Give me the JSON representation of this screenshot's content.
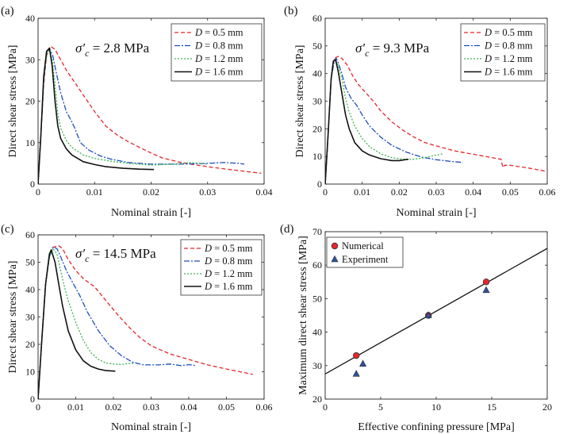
{
  "chart_data": [
    {
      "id": "a",
      "type": "line",
      "panel_label": "(a)",
      "annotation": {
        "sigma": "σ′",
        "sub": "c",
        "rest": " = 2.8 MPa"
      },
      "xlabel": "Nominal strain [-]",
      "ylabel": "Direct shear stress [MPa]",
      "xlim": [
        0,
        0.04
      ],
      "ylim": [
        0,
        40
      ],
      "xticks": [
        0,
        0.01,
        0.02,
        0.03,
        0.04
      ],
      "xtick_labels": [
        "0",
        "0.01",
        "0.02",
        "0.03",
        "0.04"
      ],
      "yticks": [
        0,
        10,
        20,
        30,
        40
      ],
      "ytick_labels": [
        "0",
        "10",
        "20",
        "30",
        "40"
      ],
      "legend": "top-right",
      "series": [
        {
          "name": "D = 0.5 mm",
          "color": "#e8262b",
          "dash": "5,3",
          "x": [
            0,
            0.0005,
            0.001,
            0.0015,
            0.0022,
            0.003,
            0.004,
            0.005,
            0.0065,
            0.008,
            0.01,
            0.012,
            0.014,
            0.016,
            0.018,
            0.02,
            0.022,
            0.025,
            0.028,
            0.031,
            0.034,
            0.037,
            0.0395
          ],
          "y": [
            0,
            12,
            24,
            31,
            33.2,
            32.5,
            30,
            27.5,
            24.5,
            21.5,
            17.5,
            14,
            11.8,
            10.2,
            8.8,
            7.5,
            6.3,
            5.3,
            4.6,
            4.0,
            3.5,
            3.0,
            2.6
          ]
        },
        {
          "name": "D = 0.8 mm",
          "color": "#1f4fbf",
          "dash": "7,2,2,2",
          "x": [
            0,
            0.0005,
            0.001,
            0.0015,
            0.002,
            0.0026,
            0.0032,
            0.004,
            0.005,
            0.0058,
            0.0065,
            0.0075,
            0.009,
            0.011,
            0.013,
            0.016,
            0.02,
            0.025,
            0.03,
            0.033,
            0.0355,
            0.0365
          ],
          "y": [
            0,
            12,
            25,
            31.5,
            32.8,
            31,
            27,
            22,
            17.5,
            15.5,
            13.5,
            10,
            8.2,
            6.8,
            6,
            5.2,
            4.8,
            4.8,
            5,
            5.2,
            5,
            4.8
          ]
        },
        {
          "name": "D = 1.2 mm",
          "color": "#3ab44a",
          "dash": "2,2",
          "x": [
            0,
            0.0005,
            0.001,
            0.0015,
            0.002,
            0.0025,
            0.003,
            0.0035,
            0.004,
            0.005,
            0.006,
            0.008,
            0.01,
            0.013,
            0.016,
            0.02,
            0.024,
            0.027,
            0.0285,
            0.03
          ],
          "y": [
            0,
            12,
            25,
            31,
            32.5,
            30,
            24,
            17,
            13.5,
            10.5,
            8.8,
            7,
            6.2,
            5.5,
            5,
            4.6,
            4.8,
            5.2,
            5,
            4.8
          ]
        },
        {
          "name": "D = 1.6 mm",
          "color": "#111111",
          "dash": "",
          "x": [
            0,
            0.0005,
            0.001,
            0.0015,
            0.002,
            0.0025,
            0.003,
            0.0035,
            0.004,
            0.005,
            0.006,
            0.008,
            0.01,
            0.012,
            0.015,
            0.018,
            0.0205
          ],
          "y": [
            0,
            12,
            26,
            32,
            32.8,
            28.5,
            20,
            14,
            11,
            8.5,
            7,
            5.4,
            4.7,
            4.2,
            3.8,
            3.6,
            3.5
          ]
        }
      ]
    },
    {
      "id": "b",
      "type": "line",
      "panel_label": "(b)",
      "annotation": {
        "sigma": "σ′",
        "sub": "c",
        "rest": " = 9.3 MPa"
      },
      "xlabel": "Nominal strain [-]",
      "ylabel": "Direct shear stress [MPa]",
      "xlim": [
        0,
        0.06
      ],
      "ylim": [
        0,
        60
      ],
      "xticks": [
        0,
        0.01,
        0.02,
        0.03,
        0.04,
        0.05,
        0.06
      ],
      "xtick_labels": [
        "0",
        "0.01",
        "0.02",
        "0.03",
        "0.04",
        "0.05",
        "0.06"
      ],
      "yticks": [
        0,
        10,
        20,
        30,
        40,
        50,
        60
      ],
      "ytick_labels": [
        "0",
        "10",
        "20",
        "30",
        "40",
        "50",
        "60"
      ],
      "legend": "top-right",
      "series": [
        {
          "name": "D = 0.5 mm",
          "color": "#e8262b",
          "dash": "5,3",
          "x": [
            0,
            0.0008,
            0.0016,
            0.0025,
            0.0035,
            0.0045,
            0.006,
            0.0075,
            0.009,
            0.011,
            0.013,
            0.015,
            0.018,
            0.021,
            0.024,
            0.027,
            0.03,
            0.035,
            0.04,
            0.045,
            0.0475,
            0.048,
            0.0485,
            0.05,
            0.055,
            0.0598
          ],
          "y": [
            0,
            18,
            38,
            45.5,
            46.2,
            45.5,
            43,
            39,
            36,
            33,
            30,
            26.5,
            22.5,
            19.5,
            17,
            15,
            13.8,
            12,
            10.8,
            9.6,
            9,
            6,
            6.8,
            6.8,
            5.8,
            4.6
          ]
        },
        {
          "name": "D = 0.8 mm",
          "color": "#1f4fbf",
          "dash": "7,2,2,2",
          "x": [
            0,
            0.0008,
            0.0016,
            0.0025,
            0.003,
            0.0035,
            0.0045,
            0.0055,
            0.007,
            0.0085,
            0.01,
            0.012,
            0.015,
            0.018,
            0.022,
            0.026,
            0.03,
            0.034,
            0.0372
          ],
          "y": [
            0,
            18,
            38,
            45,
            45.5,
            44,
            40,
            35,
            31,
            28.5,
            25,
            21,
            17,
            14,
            11.5,
            9.8,
            8.8,
            8.2,
            7.8
          ]
        },
        {
          "name": "D = 1.2 mm",
          "color": "#3ab44a",
          "dash": "2,2",
          "x": [
            0,
            0.0008,
            0.0016,
            0.0022,
            0.0028,
            0.0035,
            0.0045,
            0.0055,
            0.0065,
            0.008,
            0.01,
            0.012,
            0.015,
            0.018,
            0.021,
            0.024,
            0.027,
            0.03,
            0.032
          ],
          "y": [
            0,
            18,
            38,
            44.5,
            45,
            43,
            38,
            31,
            26,
            21,
            16.5,
            13.5,
            11,
            9.6,
            9,
            9,
            9.6,
            10.5,
            11
          ]
        },
        {
          "name": "D = 1.6 mm",
          "color": "#111111",
          "dash": "",
          "x": [
            0,
            0.0008,
            0.0016,
            0.0022,
            0.0028,
            0.0035,
            0.0045,
            0.0055,
            0.0065,
            0.008,
            0.01,
            0.012,
            0.015,
            0.018,
            0.02,
            0.0225
          ],
          "y": [
            0,
            18,
            38,
            44.5,
            45,
            41,
            33,
            25,
            20,
            15,
            12,
            10.5,
            9.2,
            8.5,
            8.5,
            9
          ]
        }
      ]
    },
    {
      "id": "c",
      "type": "line",
      "panel_label": "(c)",
      "annotation": {
        "sigma": "σ′",
        "sub": "c",
        "rest": " = 14.5 MPa"
      },
      "xlabel": "Nominal strain [-]",
      "ylabel": "Direct shear stress [MPa]",
      "xlim": [
        0,
        0.06
      ],
      "ylim": [
        0,
        60
      ],
      "xticks": [
        0,
        0.01,
        0.02,
        0.03,
        0.04,
        0.05,
        0.06
      ],
      "xtick_labels": [
        "0",
        "0.01",
        "0.02",
        "0.03",
        "0.04",
        "0.05",
        "0.06"
      ],
      "yticks": [
        0,
        10,
        20,
        30,
        40,
        50,
        60
      ],
      "ytick_labels": [
        "0",
        "10",
        "20",
        "30",
        "40",
        "50",
        "60"
      ],
      "legend": "top-right",
      "series": [
        {
          "name": "D = 0.5 mm",
          "color": "#e8262b",
          "dash": "5,3",
          "x": [
            0,
            0.001,
            0.002,
            0.003,
            0.004,
            0.0055,
            0.0065,
            0.008,
            0.01,
            0.012,
            0.015,
            0.018,
            0.021,
            0.024,
            0.027,
            0.03,
            0.035,
            0.04,
            0.045,
            0.05,
            0.055,
            0.057
          ],
          "y": [
            0,
            22,
            42,
            52,
            55.5,
            56,
            55,
            51,
            47,
            44,
            41,
            36,
            31,
            26.5,
            22.5,
            19.5,
            16.5,
            14.5,
            12.5,
            11,
            9.6,
            9
          ]
        },
        {
          "name": "D = 0.8 mm",
          "color": "#1f4fbf",
          "dash": "7,2,2,2",
          "x": [
            0,
            0.001,
            0.002,
            0.003,
            0.004,
            0.005,
            0.006,
            0.0075,
            0.009,
            0.011,
            0.013,
            0.016,
            0.019,
            0.022,
            0.025,
            0.028,
            0.032,
            0.035,
            0.038,
            0.04,
            0.042
          ],
          "y": [
            0,
            22,
            42,
            52,
            55.5,
            55,
            52,
            47,
            43,
            38,
            32,
            25,
            19.5,
            16,
            13.5,
            12.5,
            12.5,
            12.8,
            12.2,
            12.6,
            12.2
          ]
        },
        {
          "name": "D = 1.2 mm",
          "color": "#3ab44a",
          "dash": "2,2",
          "x": [
            0,
            0.001,
            0.002,
            0.003,
            0.004,
            0.005,
            0.006,
            0.007,
            0.008,
            0.01,
            0.012,
            0.014,
            0.016,
            0.018,
            0.02,
            0.022,
            0.024,
            0.0255
          ],
          "y": [
            0,
            22,
            42,
            52,
            55,
            53,
            47,
            41,
            36,
            28,
            21.5,
            17,
            14.5,
            13.2,
            12.8,
            12.6,
            13,
            13
          ]
        },
        {
          "name": "D = 1.6 mm",
          "color": "#111111",
          "dash": "",
          "x": [
            0,
            0.001,
            0.002,
            0.003,
            0.0035,
            0.0045,
            0.0055,
            0.0065,
            0.008,
            0.01,
            0.012,
            0.014,
            0.016,
            0.018,
            0.0205
          ],
          "y": [
            0,
            22,
            42,
            53,
            54.5,
            50,
            42,
            34,
            25,
            18,
            14,
            12,
            11,
            10.4,
            10.2
          ]
        }
      ]
    },
    {
      "id": "d",
      "type": "scatter",
      "panel_label": "(d)",
      "xlabel": "Effective confining pressure [MPa]",
      "ylabel": "Maximum direct shear stress [MPa]",
      "xlim": [
        0,
        20
      ],
      "ylim": [
        20,
        70
      ],
      "xticks": [
        0,
        5,
        10,
        15,
        20
      ],
      "xtick_labels": [
        "0",
        "5",
        "10",
        "15",
        "20"
      ],
      "yticks": [
        20,
        30,
        40,
        50,
        60,
        70
      ],
      "ytick_labels": [
        "20",
        "30",
        "40",
        "50",
        "60",
        "70"
      ],
      "legend": "top-left",
      "series": [
        {
          "name": "Numerical",
          "marker": "circle",
          "color": "#e8262b",
          "x": [
            2.8,
            9.3,
            14.5
          ],
          "y": [
            33,
            45,
            55
          ]
        },
        {
          "name": "Experiment",
          "marker": "triangle",
          "color": "#2f5597",
          "x": [
            2.8,
            3.4,
            9.3,
            14.5
          ],
          "y": [
            27.5,
            30.5,
            45,
            52.5
          ]
        }
      ],
      "fit_line": {
        "x": [
          0,
          20
        ],
        "y": [
          27.5,
          65
        ]
      }
    }
  ]
}
